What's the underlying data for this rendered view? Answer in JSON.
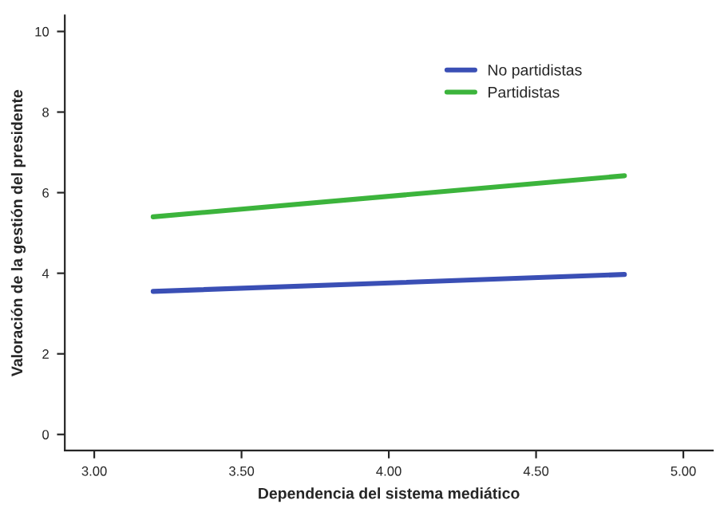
{
  "chart_data": {
    "type": "line",
    "xlabel": "Dependencia del sistema mediático",
    "ylabel": "Valoración de la gestión del presidente",
    "x": [
      3.2,
      4.8
    ],
    "series": [
      {
        "name": "No partidistas",
        "color": "#3a4fb5",
        "values": [
          3.55,
          3.97
        ]
      },
      {
        "name": "Partidistas",
        "color": "#3cb43c",
        "values": [
          5.4,
          6.42
        ]
      }
    ],
    "xlim": [
      2.9,
      5.1
    ],
    "ylim": [
      -0.4,
      10.4
    ],
    "xticks": [
      {
        "value": 3,
        "label": "3.00"
      },
      {
        "value": 3.5,
        "label": "3.50"
      },
      {
        "value": 4,
        "label": "4.00"
      },
      {
        "value": 4.5,
        "label": "4.50"
      },
      {
        "value": 5,
        "label": "5.00"
      }
    ],
    "yticks": [
      0,
      2,
      4,
      6,
      8,
      10
    ],
    "grid": false,
    "legend": "top right",
    "marker": "none",
    "line_style": "solid"
  }
}
